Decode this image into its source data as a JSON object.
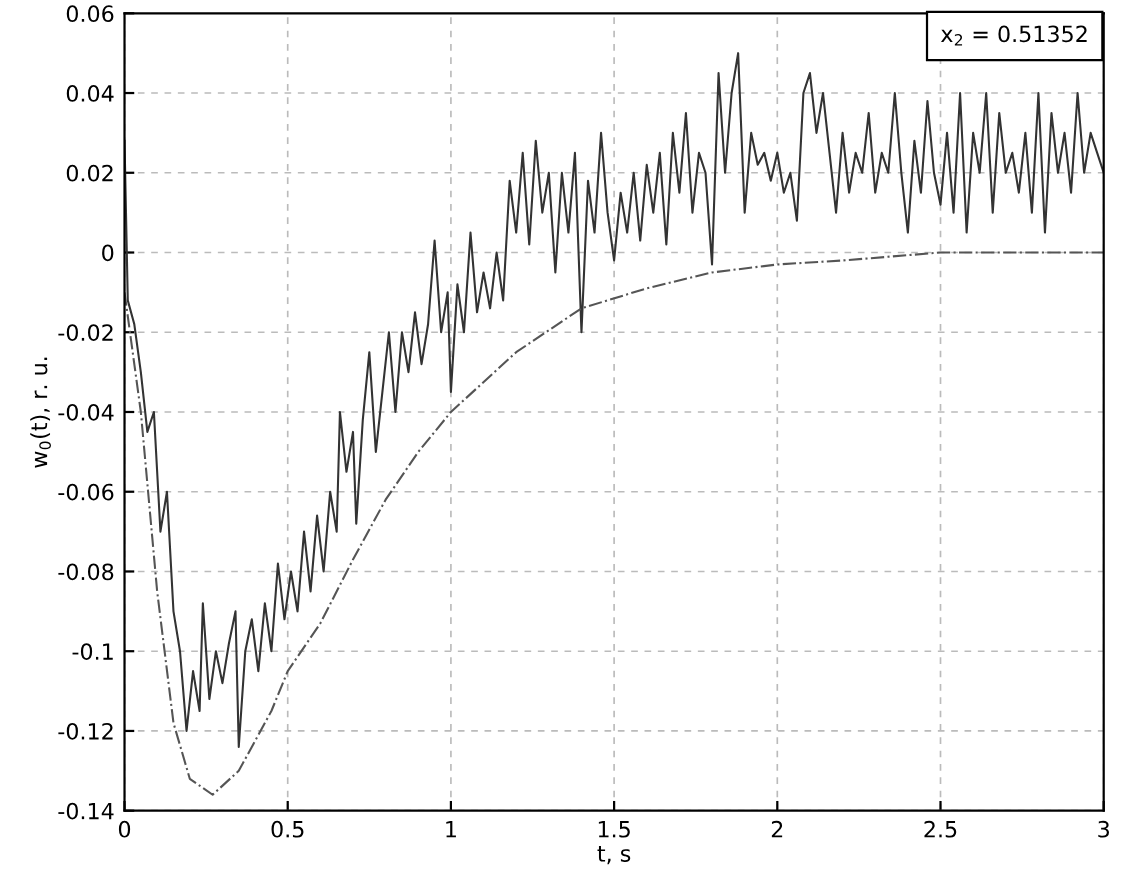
{
  "chart_data": {
    "type": "line",
    "xlabel": "t, s",
    "ylabel": "w$_{0}$(t), r. u.",
    "annotations": [
      "x$_{2}$ = 0.51352"
    ],
    "xlim": [
      0,
      3
    ],
    "xticks": [
      0,
      0.5,
      1,
      1.5,
      2,
      2.5,
      3
    ],
    "ylim": [
      -0.14,
      0.06
    ],
    "yticks": [
      -0.14,
      -0.12,
      -0.1,
      -0.08,
      -0.06,
      -0.04,
      -0.02,
      0,
      0.02,
      0.04,
      0.06
    ],
    "grid": true,
    "series": [
      {
        "color": "#333333",
        "line_style": "solid",
        "x": [
          0,
          0.01,
          0.03,
          0.05,
          0.07,
          0.09,
          0.11,
          0.13,
          0.15,
          0.17,
          0.19,
          0.21,
          0.23,
          0.24,
          0.26,
          0.28,
          0.3,
          0.32,
          0.34,
          0.35,
          0.37,
          0.39,
          0.41,
          0.43,
          0.45,
          0.47,
          0.49,
          0.51,
          0.53,
          0.55,
          0.57,
          0.59,
          0.61,
          0.63,
          0.65,
          0.66,
          0.68,
          0.7,
          0.71,
          0.73,
          0.75,
          0.77,
          0.79,
          0.81,
          0.83,
          0.85,
          0.87,
          0.89,
          0.91,
          0.93,
          0.95,
          0.97,
          0.99,
          1.0,
          1.02,
          1.04,
          1.06,
          1.08,
          1.1,
          1.12,
          1.14,
          1.16,
          1.18,
          1.2,
          1.22,
          1.24,
          1.26,
          1.28,
          1.3,
          1.32,
          1.34,
          1.36,
          1.38,
          1.4,
          1.42,
          1.44,
          1.46,
          1.48,
          1.5,
          1.52,
          1.54,
          1.56,
          1.58,
          1.6,
          1.62,
          1.64,
          1.66,
          1.68,
          1.7,
          1.72,
          1.74,
          1.76,
          1.78,
          1.8,
          1.82,
          1.84,
          1.86,
          1.88,
          1.9,
          1.92,
          1.94,
          1.96,
          1.98,
          2.0,
          2.02,
          2.04,
          2.06,
          2.08,
          2.1,
          2.12,
          2.14,
          2.16,
          2.18,
          2.2,
          2.22,
          2.24,
          2.26,
          2.28,
          2.3,
          2.32,
          2.34,
          2.36,
          2.38,
          2.4,
          2.42,
          2.44,
          2.46,
          2.48,
          2.5,
          2.52,
          2.54,
          2.56,
          2.58,
          2.6,
          2.62,
          2.64,
          2.66,
          2.68,
          2.7,
          2.72,
          2.74,
          2.76,
          2.78,
          2.8,
          2.82,
          2.84,
          2.86,
          2.88,
          2.9,
          2.92,
          2.94,
          2.96,
          2.98,
          3.0
        ],
        "values": [
          0.028,
          -0.012,
          -0.018,
          -0.03,
          -0.045,
          -0.04,
          -0.07,
          -0.06,
          -0.09,
          -0.1,
          -0.12,
          -0.105,
          -0.115,
          -0.088,
          -0.112,
          -0.1,
          -0.108,
          -0.098,
          -0.09,
          -0.124,
          -0.1,
          -0.092,
          -0.105,
          -0.088,
          -0.1,
          -0.078,
          -0.092,
          -0.08,
          -0.09,
          -0.07,
          -0.085,
          -0.066,
          -0.08,
          -0.06,
          -0.07,
          -0.04,
          -0.055,
          -0.045,
          -0.068,
          -0.042,
          -0.025,
          -0.05,
          -0.035,
          -0.02,
          -0.04,
          -0.02,
          -0.03,
          -0.015,
          -0.028,
          -0.018,
          0.003,
          -0.02,
          -0.01,
          -0.035,
          -0.008,
          -0.02,
          0.005,
          -0.015,
          -0.005,
          -0.014,
          0.0,
          -0.012,
          0.018,
          0.005,
          0.025,
          0.002,
          0.028,
          0.01,
          0.02,
          -0.005,
          0.02,
          0.005,
          0.025,
          -0.02,
          0.018,
          0.005,
          0.03,
          0.01,
          -0.002,
          0.015,
          0.005,
          0.02,
          0.003,
          0.022,
          0.01,
          0.025,
          0.002,
          0.03,
          0.015,
          0.035,
          0.01,
          0.025,
          0.02,
          -0.003,
          0.045,
          0.02,
          0.04,
          0.05,
          0.01,
          0.03,
          0.022,
          0.025,
          0.018,
          0.025,
          0.015,
          0.02,
          0.008,
          0.04,
          0.045,
          0.03,
          0.04,
          0.025,
          0.01,
          0.03,
          0.015,
          0.025,
          0.02,
          0.035,
          0.015,
          0.025,
          0.02,
          0.04,
          0.02,
          0.005,
          0.028,
          0.015,
          0.038,
          0.02,
          0.012,
          0.03,
          0.01,
          0.04,
          0.005,
          0.03,
          0.02,
          0.04,
          0.01,
          0.035,
          0.02,
          0.025,
          0.015,
          0.03,
          0.01,
          0.04,
          0.005,
          0.035,
          0.02,
          0.03,
          0.015,
          0.04,
          0.02,
          0.03,
          0.025,
          0.02
        ]
      },
      {
        "color": "#555555",
        "line_style": "dashdot",
        "x": [
          0,
          0.05,
          0.1,
          0.15,
          0.2,
          0.27,
          0.35,
          0.45,
          0.5,
          0.6,
          0.7,
          0.8,
          0.9,
          1.0,
          1.2,
          1.4,
          1.6,
          1.8,
          2.0,
          2.2,
          2.5,
          2.75,
          3.0
        ],
        "values": [
          -0.01,
          -0.04,
          -0.085,
          -0.118,
          -0.132,
          -0.136,
          -0.13,
          -0.115,
          -0.105,
          -0.093,
          -0.077,
          -0.062,
          -0.05,
          -0.04,
          -0.025,
          -0.014,
          -0.009,
          -0.005,
          -0.003,
          -0.002,
          0.0,
          0.0,
          0.0
        ]
      }
    ]
  }
}
